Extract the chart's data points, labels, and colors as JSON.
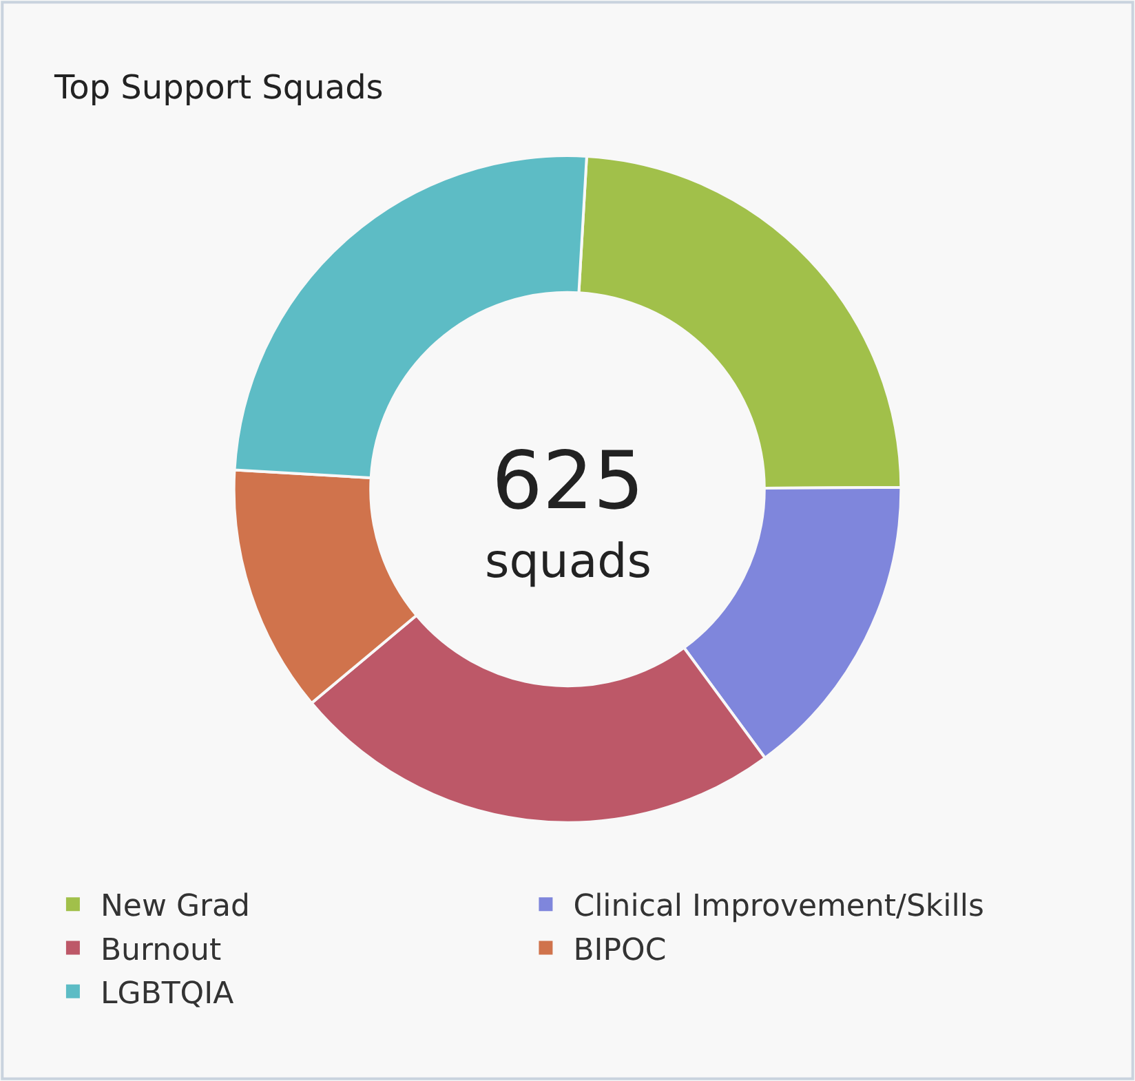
{
  "chart_data": {
    "type": "donut",
    "title": "Top Support Squads",
    "categories": [
      "New Grad",
      "Clinical Improvement/Skills",
      "Burnout",
      "BIPOC",
      "LGBTQIA"
    ],
    "values": [
      24,
      15,
      24,
      12,
      25
    ],
    "colors": [
      "#a1c04a",
      "#7f86dc",
      "#bd5868",
      "#d0734c",
      "#5dbcc5"
    ],
    "annotations": [
      "625",
      "squads"
    ],
    "legend": "bottom"
  }
}
